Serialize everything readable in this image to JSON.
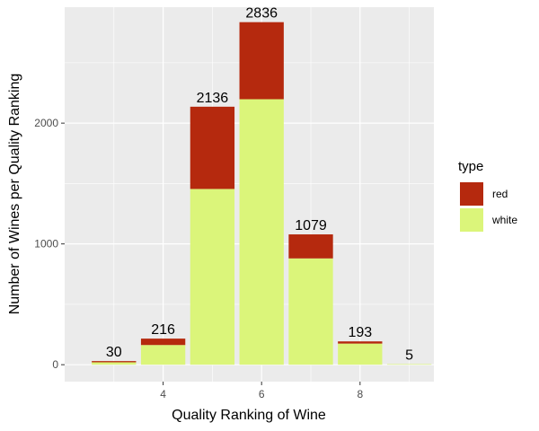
{
  "chart_data": {
    "type": "bar",
    "stacked": true,
    "xlabel": "Quality Ranking of Wine",
    "ylabel": "Number of Wines per Quality Ranking",
    "x_categories": [
      3,
      4,
      5,
      6,
      7,
      8,
      9
    ],
    "xlim": [
      2,
      9.5
    ],
    "x_ticks": [
      4,
      6,
      8
    ],
    "x_tick_labels": [
      "4",
      "6",
      "8"
    ],
    "ylim": [
      -140,
      2960
    ],
    "y_ticks": [
      0,
      1000,
      2000
    ],
    "y_tick_labels": [
      "0",
      "1000",
      "2000"
    ],
    "grid": true,
    "legend": {
      "title": "type",
      "position": "right",
      "entries": [
        {
          "label": "red",
          "color": "#b5290e"
        },
        {
          "label": "white",
          "color": "#dbf57a"
        }
      ]
    },
    "series": [
      {
        "name": "red",
        "color": "#b5290e",
        "values": [
          10,
          53,
          681,
          638,
          199,
          18,
          0
        ]
      },
      {
        "name": "white",
        "color": "#dbf57a",
        "values": [
          20,
          163,
          1455,
          2198,
          880,
          175,
          5
        ]
      }
    ],
    "totals": [
      30,
      216,
      2136,
      2836,
      1079,
      193,
      5
    ],
    "total_labels": [
      "30",
      "216",
      "2136",
      "2836",
      "1079",
      "193",
      "5"
    ]
  }
}
